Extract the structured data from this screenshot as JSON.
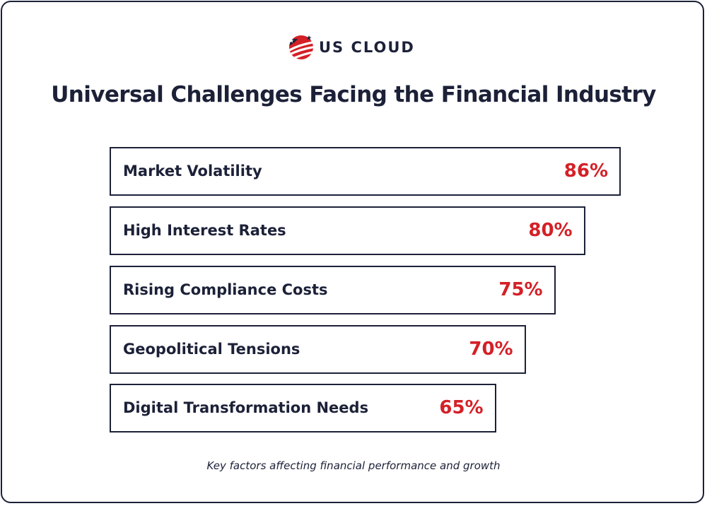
{
  "brand": {
    "name": "US CLOUD",
    "icon": "us-cloud-globe-flag-icon",
    "colors": {
      "red": "#d42027",
      "navy": "#1c2138"
    }
  },
  "chart_data": {
    "type": "bar",
    "orientation": "horizontal",
    "title": "Universal Challenges Facing the Financial Industry",
    "categories": [
      "Market Volatility",
      "High Interest Rates",
      "Rising Compliance Costs",
      "Geopolitical Tensions",
      "Digital Transformation Needs"
    ],
    "values": [
      86,
      80,
      75,
      70,
      65
    ],
    "value_labels": [
      "86%",
      "80%",
      "75%",
      "70%",
      "65%"
    ],
    "unit": "%",
    "value_color": "#d42027",
    "bar_outline_color": "#1c2138",
    "caption": "Key factors affecting financial performance and growth",
    "grid": false,
    "legend": "none"
  }
}
